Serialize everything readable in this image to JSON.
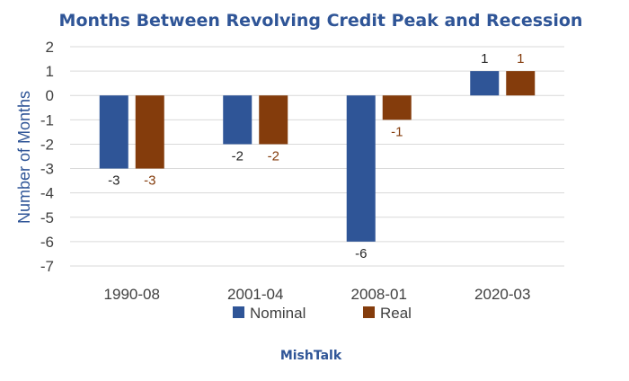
{
  "colors": {
    "nominal": "#2f5597",
    "real": "#843c0c",
    "title": "#2f5597",
    "axis_title": "#2f5597",
    "grid": "#d9d9d9"
  },
  "chart_data": {
    "type": "bar",
    "title": "Months Between Revolving Credit Peak and Recession",
    "xlabel": "",
    "ylabel": "Number of Months",
    "ylim": [
      -7,
      2
    ],
    "yticks": [
      2,
      1,
      0,
      -1,
      -2,
      -3,
      -4,
      -5,
      -6,
      -7
    ],
    "grid": true,
    "legend_position": "bottom",
    "categories": [
      "1990-08",
      "2001-04",
      "2008-01",
      "2020-03"
    ],
    "series": [
      {
        "name": "Nominal",
        "color_key": "nominal",
        "values": [
          -3,
          -2,
          -6,
          1
        ],
        "labels": [
          "-3",
          "-2",
          "-6",
          "1"
        ]
      },
      {
        "name": "Real",
        "color_key": "real",
        "values": [
          -3,
          -2,
          -1,
          1
        ],
        "labels": [
          "-3",
          "-2",
          "-1",
          "1"
        ]
      }
    ]
  },
  "credit": "MishTalk"
}
